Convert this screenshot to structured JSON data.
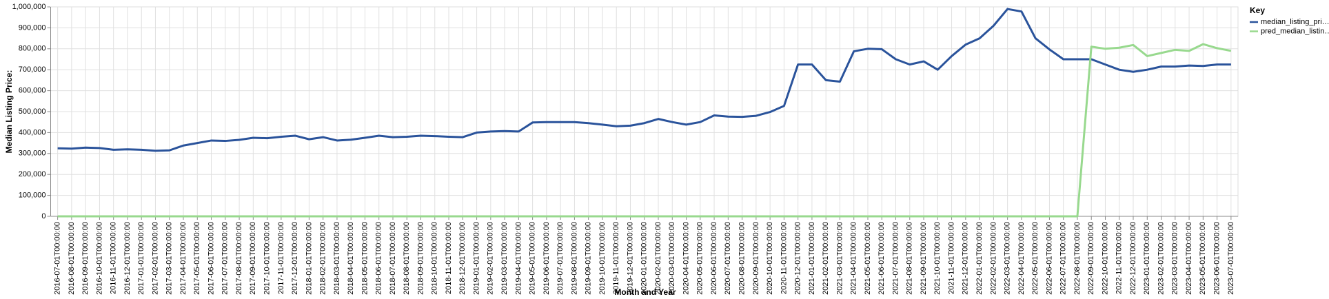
{
  "chart_data": {
    "type": "line",
    "x_label": "Month and Year",
    "y_label": "Median Listing Price:",
    "legend_title": "Key",
    "legend_position": "right",
    "grid": true,
    "categories": [
      "2016-07-01T00:00:00",
      "2016-08-01T00:00:00",
      "2016-09-01T00:00:00",
      "2016-10-01T00:00:00",
      "2016-11-01T00:00:00",
      "2016-12-01T00:00:00",
      "2017-01-01T00:00:00",
      "2017-02-01T00:00:00",
      "2017-03-01T00:00:00",
      "2017-04-01T00:00:00",
      "2017-05-01T00:00:00",
      "2017-06-01T00:00:00",
      "2017-07-01T00:00:00",
      "2017-08-01T00:00:00",
      "2017-09-01T00:00:00",
      "2017-10-01T00:00:00",
      "2017-11-01T00:00:00",
      "2017-12-01T00:00:00",
      "2018-01-01T00:00:00",
      "2018-02-01T00:00:00",
      "2018-03-01T00:00:00",
      "2018-04-01T00:00:00",
      "2018-05-01T00:00:00",
      "2018-06-01T00:00:00",
      "2018-07-01T00:00:00",
      "2018-08-01T00:00:00",
      "2018-09-01T00:00:00",
      "2018-10-01T00:00:00",
      "2018-11-01T00:00:00",
      "2018-12-01T00:00:00",
      "2019-01-01T00:00:00",
      "2019-02-01T00:00:00",
      "2019-03-01T00:00:00",
      "2019-04-01T00:00:00",
      "2019-05-01T00:00:00",
      "2019-06-01T00:00:00",
      "2019-07-01T00:00:00",
      "2019-08-01T00:00:00",
      "2019-09-01T00:00:00",
      "2019-10-01T00:00:00",
      "2019-11-01T00:00:00",
      "2019-12-01T00:00:00",
      "2020-01-01T00:00:00",
      "2020-02-01T00:00:00",
      "2020-03-01T00:00:00",
      "2020-04-01T00:00:00",
      "2020-05-01T00:00:00",
      "2020-06-01T00:00:00",
      "2020-07-01T00:00:00",
      "2020-08-01T00:00:00",
      "2020-09-01T00:00:00",
      "2020-10-01T00:00:00",
      "2020-11-01T00:00:00",
      "2020-12-01T00:00:00",
      "2021-01-01T00:00:00",
      "2021-02-01T00:00:00",
      "2021-03-01T00:00:00",
      "2021-04-01T00:00:00",
      "2021-05-01T00:00:00",
      "2021-06-01T00:00:00",
      "2021-07-01T00:00:00",
      "2021-08-01T00:00:00",
      "2021-09-01T00:00:00",
      "2021-10-01T00:00:00",
      "2021-11-01T00:00:00",
      "2021-12-01T00:00:00",
      "2022-01-01T00:00:00",
      "2022-02-01T00:00:00",
      "2022-03-01T00:00:00",
      "2022-04-01T00:00:00",
      "2022-05-01T00:00:00",
      "2022-06-01T00:00:00",
      "2022-07-01T00:00:00",
      "2022-08-01T00:00:00",
      "2022-09-01T00:00:00",
      "2022-10-01T00:00:00",
      "2022-11-01T00:00:00",
      "2022-12-01T00:00:00",
      "2023-01-01T00:00:00",
      "2023-02-01T00:00:00",
      "2023-03-01T00:00:00",
      "2023-04-01T00:00:00",
      "2023-05-01T00:00:00",
      "2023-06-01T00:00:00",
      "2023-07-01T00:00:00"
    ],
    "series": [
      {
        "name": "median_listing_pri…",
        "color": "#2a539b",
        "values": [
          325000,
          323000,
          328000,
          326000,
          318000,
          320000,
          318000,
          313000,
          315000,
          338000,
          350000,
          362000,
          360000,
          365000,
          375000,
          373000,
          380000,
          385000,
          368000,
          378000,
          362000,
          366000,
          375000,
          385000,
          378000,
          380000,
          385000,
          383000,
          380000,
          378000,
          400000,
          405000,
          407000,
          405000,
          448000,
          450000,
          450000,
          450000,
          445000,
          438000,
          430000,
          433000,
          445000,
          465000,
          450000,
          438000,
          450000,
          482000,
          476000,
          475000,
          480000,
          498000,
          527000,
          725000,
          725000,
          650000,
          643000,
          788000,
          800000,
          798000,
          750000,
          725000,
          740000,
          700000,
          765000,
          820000,
          850000,
          910000,
          990000,
          978000,
          850000,
          797000,
          750000,
          750000,
          750000,
          725000,
          700000,
          690000,
          700000,
          715000,
          715000,
          720000,
          718000,
          725000,
          725000
        ]
      },
      {
        "name": "pred_median_listin…",
        "color": "#98d98e",
        "values": [
          0,
          0,
          0,
          0,
          0,
          0,
          0,
          0,
          0,
          0,
          0,
          0,
          0,
          0,
          0,
          0,
          0,
          0,
          0,
          0,
          0,
          0,
          0,
          0,
          0,
          0,
          0,
          0,
          0,
          0,
          0,
          0,
          0,
          0,
          0,
          0,
          0,
          0,
          0,
          0,
          0,
          0,
          0,
          0,
          0,
          0,
          0,
          0,
          0,
          0,
          0,
          0,
          0,
          0,
          0,
          0,
          0,
          0,
          0,
          0,
          0,
          0,
          0,
          0,
          0,
          0,
          0,
          0,
          0,
          0,
          0,
          0,
          0,
          0,
          810000,
          800000,
          805000,
          818000,
          765000,
          780000,
          795000,
          790000,
          822000,
          803000,
          790000
        ]
      }
    ],
    "ylim": [
      0,
      1000000
    ],
    "yticks": [
      0,
      {
        "value": 100000,
        "label": "100,000"
      },
      {
        "value": 200000,
        "label": "200,000"
      },
      {
        "value": 300000,
        "label": "300,000"
      },
      {
        "value": 400000,
        "label": "400,000"
      },
      {
        "value": 500000,
        "label": "500,000"
      },
      {
        "value": 600000,
        "label": "600,000"
      },
      {
        "value": 700000,
        "label": "700,000"
      },
      {
        "value": 800000,
        "label": "800,000"
      },
      {
        "value": 900000,
        "label": "900,000"
      },
      {
        "value": 1000000,
        "label": "1,000,000"
      }
    ]
  }
}
